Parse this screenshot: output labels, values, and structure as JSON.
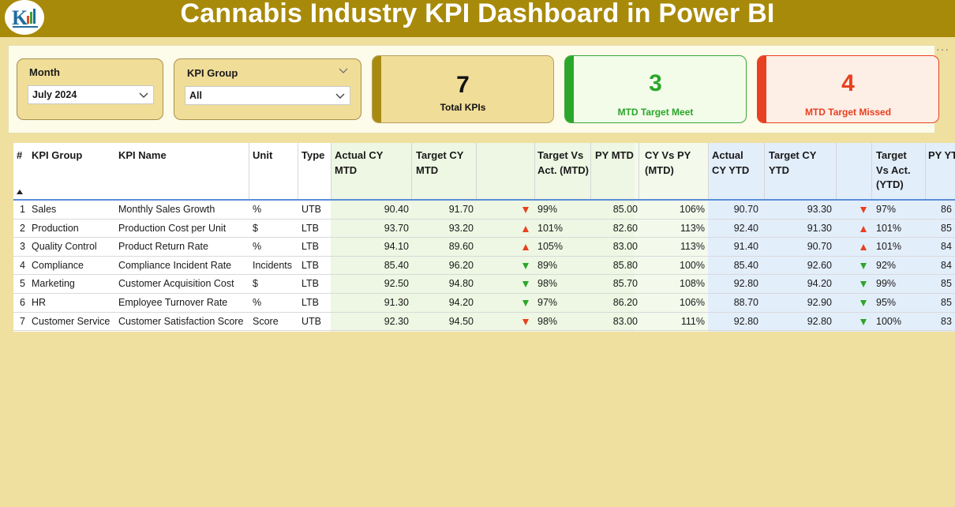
{
  "header": {
    "title": "Cannabis Industry KPI Dashboard in Power BI"
  },
  "colors": {
    "title_bar": "#a88a0a",
    "background": "#f0e0a0",
    "green": "#2aa62a",
    "red": "#e84020",
    "gold": "#a88a10"
  },
  "slicers": [
    {
      "label": "Month",
      "value": "July 2024"
    },
    {
      "label": "KPI Group",
      "value": "All"
    }
  ],
  "cards": [
    {
      "value": "7",
      "label": "Total KPIs"
    },
    {
      "value": "3",
      "label": "MTD Target Meet"
    },
    {
      "value": "4",
      "label": "MTD Target Missed"
    }
  ],
  "table": {
    "columns": [
      "#",
      "KPI Group",
      "KPI Name",
      "Unit",
      "Type",
      "Actual CY MTD",
      "Target CY MTD",
      "",
      "Target Vs Act. (MTD)",
      "PY MTD",
      "CY Vs PY (MTD)",
      "Actual CY YTD",
      "Target CY YTD",
      "",
      "Target Vs Act. (YTD)",
      "PY YTD"
    ],
    "rows": [
      {
        "num": "1",
        "group": "Sales",
        "name": "Monthly Sales Growth",
        "unit": "%",
        "type": "UTB",
        "act_mtd": "90.40",
        "tgt_mtd": "91.70",
        "mtd_icon": "down-red",
        "tva_mtd": "99%",
        "py_mtd": "85.00",
        "cy_py": "106%",
        "act_ytd": "90.70",
        "tgt_ytd": "93.30",
        "ytd_icon": "down-red",
        "tva_ytd": "97%",
        "py_ytd": "86"
      },
      {
        "num": "2",
        "group": "Production",
        "name": "Production Cost per Unit",
        "unit": "$",
        "type": "LTB",
        "act_mtd": "93.70",
        "tgt_mtd": "93.20",
        "mtd_icon": "up-red",
        "tva_mtd": "101%",
        "py_mtd": "82.60",
        "cy_py": "113%",
        "act_ytd": "92.40",
        "tgt_ytd": "91.30",
        "ytd_icon": "up-red",
        "tva_ytd": "101%",
        "py_ytd": "85"
      },
      {
        "num": "3",
        "group": "Quality Control",
        "name": "Product Return Rate",
        "unit": "%",
        "type": "LTB",
        "act_mtd": "94.10",
        "tgt_mtd": "89.60",
        "mtd_icon": "up-red",
        "tva_mtd": "105%",
        "py_mtd": "83.00",
        "cy_py": "113%",
        "act_ytd": "91.40",
        "tgt_ytd": "90.70",
        "ytd_icon": "up-red",
        "tva_ytd": "101%",
        "py_ytd": "84"
      },
      {
        "num": "4",
        "group": "Compliance",
        "name": "Compliance Incident Rate",
        "unit": "Incidents",
        "type": "LTB",
        "act_mtd": "85.40",
        "tgt_mtd": "96.20",
        "mtd_icon": "down-green",
        "tva_mtd": "89%",
        "py_mtd": "85.80",
        "cy_py": "100%",
        "act_ytd": "85.40",
        "tgt_ytd": "92.60",
        "ytd_icon": "down-green",
        "tva_ytd": "92%",
        "py_ytd": "84"
      },
      {
        "num": "5",
        "group": "Marketing",
        "name": "Customer Acquisition Cost",
        "unit": "$",
        "type": "LTB",
        "act_mtd": "92.50",
        "tgt_mtd": "94.80",
        "mtd_icon": "down-green",
        "tva_mtd": "98%",
        "py_mtd": "85.70",
        "cy_py": "108%",
        "act_ytd": "92.80",
        "tgt_ytd": "94.20",
        "ytd_icon": "down-green",
        "tva_ytd": "99%",
        "py_ytd": "85"
      },
      {
        "num": "6",
        "group": "HR",
        "name": "Employee Turnover Rate",
        "unit": "%",
        "type": "LTB",
        "act_mtd": "91.30",
        "tgt_mtd": "94.20",
        "mtd_icon": "down-green",
        "tva_mtd": "97%",
        "py_mtd": "86.20",
        "cy_py": "106%",
        "act_ytd": "88.70",
        "tgt_ytd": "92.90",
        "ytd_icon": "down-green",
        "tva_ytd": "95%",
        "py_ytd": "85"
      },
      {
        "num": "7",
        "group": "Customer Service",
        "name": "Customer Satisfaction Score",
        "unit": "Score",
        "type": "UTB",
        "act_mtd": "92.30",
        "tgt_mtd": "94.50",
        "mtd_icon": "down-red",
        "tva_mtd": "98%",
        "py_mtd": "83.00",
        "cy_py": "111%",
        "act_ytd": "92.80",
        "tgt_ytd": "92.80",
        "ytd_icon": "down-green",
        "tva_ytd": "100%",
        "py_ytd": "83"
      }
    ]
  }
}
